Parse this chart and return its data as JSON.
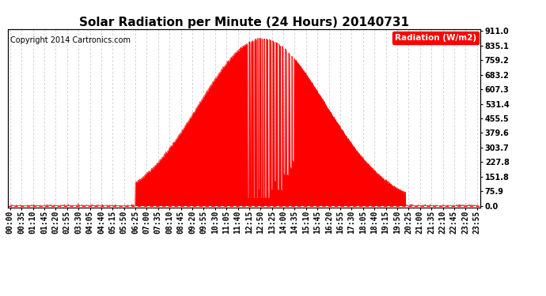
{
  "title": "Solar Radiation per Minute (24 Hours) 20140731",
  "copyright_text": "Copyright 2014 Cartronics.com",
  "legend_label": "Radiation (W/m2)",
  "ytick_values": [
    0.0,
    75.9,
    151.8,
    227.8,
    303.7,
    379.6,
    455.5,
    531.4,
    607.3,
    683.2,
    759.2,
    835.1,
    911.0
  ],
  "ymax": 911.0,
  "ymin": 0.0,
  "fill_color": "#ff0000",
  "line_color": "#ff0000",
  "background_color": "#ffffff",
  "grid_color": "#c0c0c0",
  "dashed_zero_color": "#ff0000",
  "title_fontsize": 11,
  "copyright_fontsize": 7,
  "tick_fontsize": 7,
  "legend_fontsize": 7.5,
  "peak_minute": 775,
  "peak_value": 870,
  "sigma": 195,
  "sunrise_minute": 385,
  "sunset_minute": 1215,
  "xtick_labels": [
    "00:00",
    "00:35",
    "01:10",
    "01:45",
    "02:20",
    "02:55",
    "03:30",
    "04:05",
    "04:40",
    "05:15",
    "05:50",
    "06:25",
    "07:00",
    "07:35",
    "08:10",
    "08:45",
    "09:20",
    "09:55",
    "10:30",
    "11:05",
    "11:40",
    "12:15",
    "12:50",
    "13:25",
    "14:00",
    "14:35",
    "15:10",
    "15:45",
    "16:20",
    "16:55",
    "17:30",
    "18:05",
    "18:40",
    "19:15",
    "19:50",
    "20:25",
    "21:00",
    "21:35",
    "22:10",
    "22:45",
    "23:20",
    "23:55"
  ]
}
